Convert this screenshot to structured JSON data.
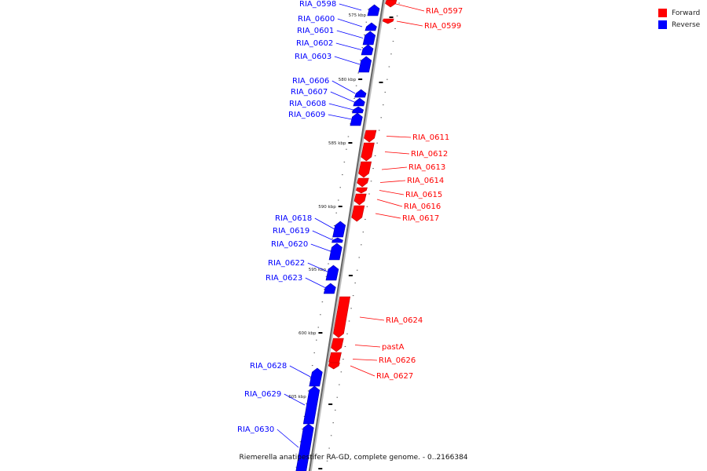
{
  "legend": {
    "forward": {
      "label": "Forward",
      "color": "#ff0000"
    },
    "reverse": {
      "label": "Reverse",
      "color": "#0000ff"
    }
  },
  "caption": "Riemerella anatipestifer RA-GD, complete genome. - 0..2166384",
  "ticks": [
    "575 kbp",
    "580 kbp",
    "585 kbp",
    "590 kbp",
    "595 kbp",
    "600 kbp",
    "605 kbp"
  ],
  "genes": [
    {
      "name": "RIA_0597",
      "strand": "forward"
    },
    {
      "name": "RIA_0598",
      "strand": "reverse"
    },
    {
      "name": "RIA_0599",
      "strand": "forward"
    },
    {
      "name": "RIA_0600",
      "strand": "reverse"
    },
    {
      "name": "RIA_0601",
      "strand": "reverse"
    },
    {
      "name": "RIA_0602",
      "strand": "reverse"
    },
    {
      "name": "RIA_0603",
      "strand": "reverse"
    },
    {
      "name": "RIA_0606",
      "strand": "reverse"
    },
    {
      "name": "RIA_0607",
      "strand": "reverse"
    },
    {
      "name": "RIA_0608",
      "strand": "reverse"
    },
    {
      "name": "RIA_0609",
      "strand": "reverse"
    },
    {
      "name": "RIA_0611",
      "strand": "forward"
    },
    {
      "name": "RIA_0612",
      "strand": "forward"
    },
    {
      "name": "RIA_0613",
      "strand": "forward"
    },
    {
      "name": "RIA_0614",
      "strand": "forward"
    },
    {
      "name": "RIA_0615",
      "strand": "forward"
    },
    {
      "name": "RIA_0616",
      "strand": "forward"
    },
    {
      "name": "RIA_0617",
      "strand": "forward"
    },
    {
      "name": "RIA_0618",
      "strand": "reverse"
    },
    {
      "name": "RIA_0619",
      "strand": "reverse"
    },
    {
      "name": "RIA_0620",
      "strand": "reverse"
    },
    {
      "name": "RIA_0622",
      "strand": "reverse"
    },
    {
      "name": "RIA_0623",
      "strand": "reverse"
    },
    {
      "name": "RIA_0624",
      "strand": "forward"
    },
    {
      "name": "pastA",
      "strand": "forward"
    },
    {
      "name": "RIA_0626",
      "strand": "forward"
    },
    {
      "name": "RIA_0627",
      "strand": "forward"
    },
    {
      "name": "RIA_0628",
      "strand": "reverse"
    },
    {
      "name": "RIA_0629",
      "strand": "reverse"
    },
    {
      "name": "RIA_0630",
      "strand": "reverse"
    }
  ]
}
